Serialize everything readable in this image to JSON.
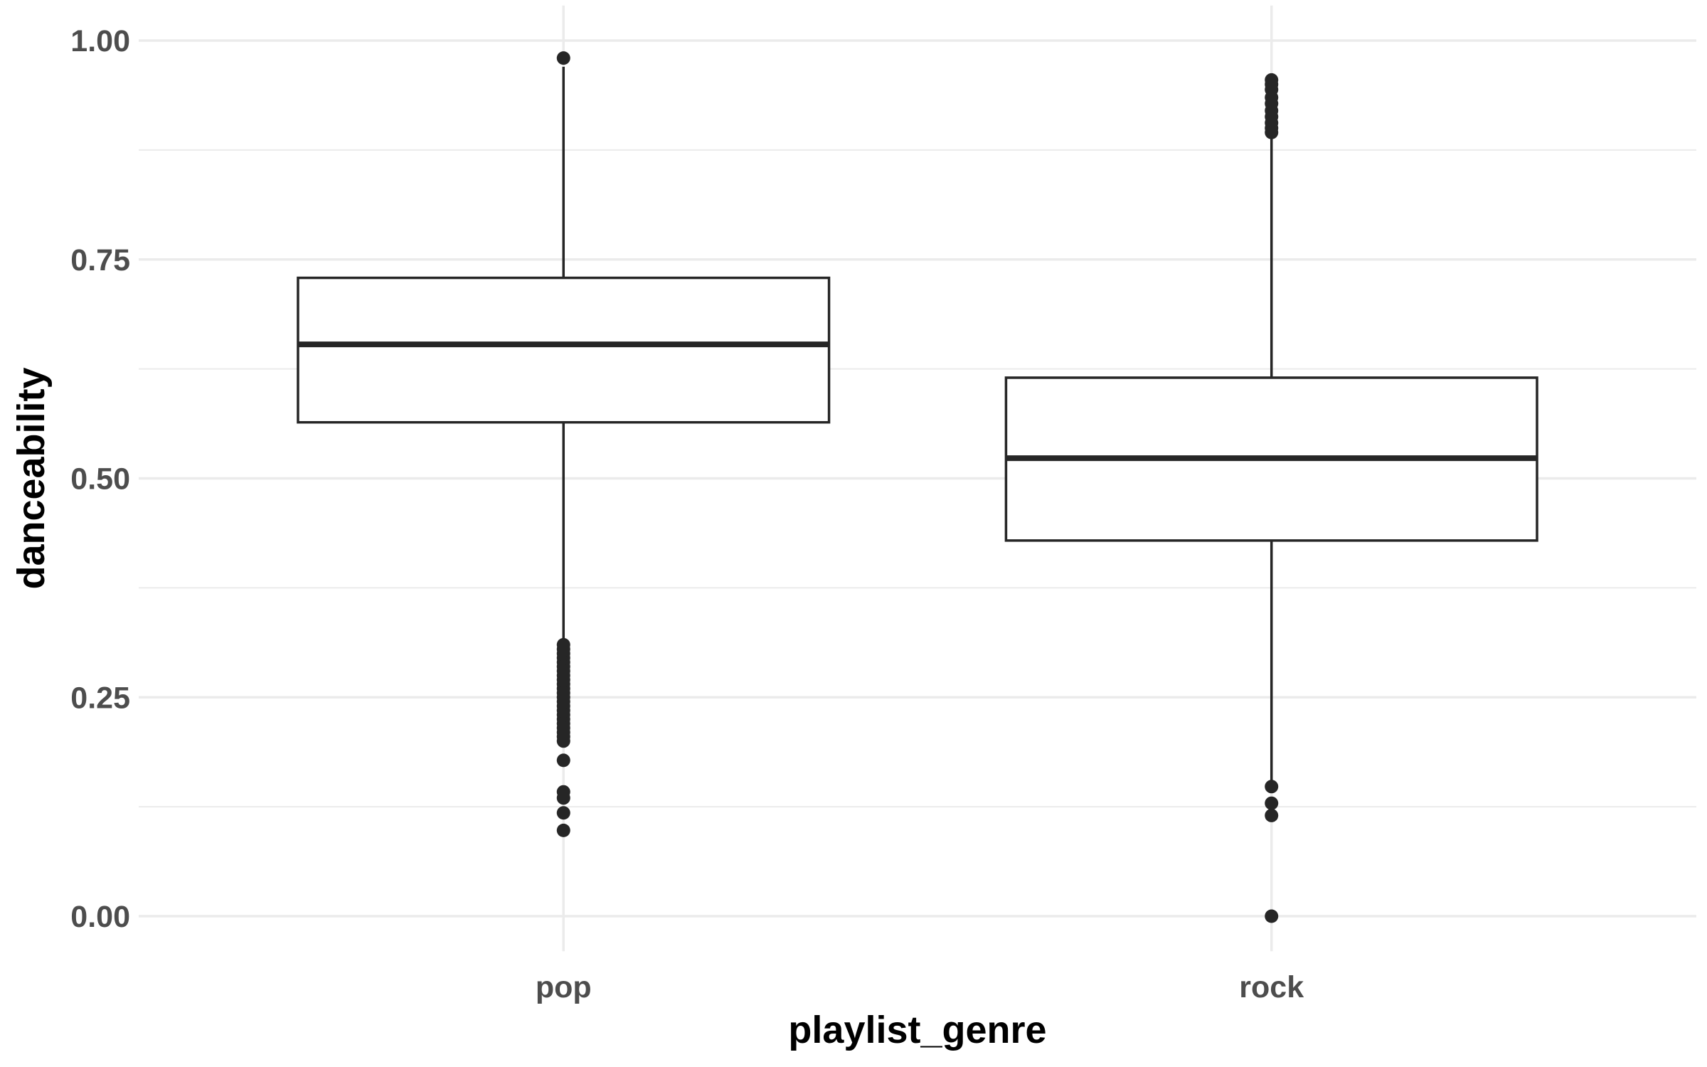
{
  "chart_data": {
    "type": "box",
    "title": "",
    "xlabel": "playlist_genre",
    "ylabel": "danceability",
    "ylim": [
      -0.04,
      1.04
    ],
    "y_ticks": [
      "0.00",
      "0.25",
      "0.50",
      "0.75",
      "1.00"
    ],
    "y_tick_values": [
      0,
      0.25,
      0.5,
      0.75,
      1.0
    ],
    "grid": true,
    "colors": {
      "box_line": "#262626",
      "box_fill": "#ffffff",
      "grid": "#ebebeb",
      "tick_text": "#4d4d4d"
    },
    "categories": [
      "pop",
      "rock"
    ],
    "series": [
      {
        "category": "pop",
        "whisker_low": 0.315,
        "q1": 0.564,
        "median": 0.653,
        "q3": 0.729,
        "whisker_high": 0.97,
        "outliers": [
          0.98,
          0.31,
          0.305,
          0.3,
          0.295,
          0.29,
          0.285,
          0.28,
          0.275,
          0.27,
          0.265,
          0.26,
          0.255,
          0.25,
          0.245,
          0.24,
          0.235,
          0.23,
          0.225,
          0.22,
          0.215,
          0.21,
          0.205,
          0.2,
          0.178,
          0.142,
          0.135,
          0.118,
          0.098
        ]
      },
      {
        "category": "rock",
        "whisker_low": 0.149,
        "q1": 0.429,
        "median": 0.523,
        "q3": 0.615,
        "whisker_high": 0.889,
        "outliers": [
          0.955,
          0.95,
          0.944,
          0.935,
          0.928,
          0.92,
          0.913,
          0.906,
          0.9,
          0.895,
          0.148,
          0.129,
          0.115,
          0.0
        ]
      }
    ]
  }
}
